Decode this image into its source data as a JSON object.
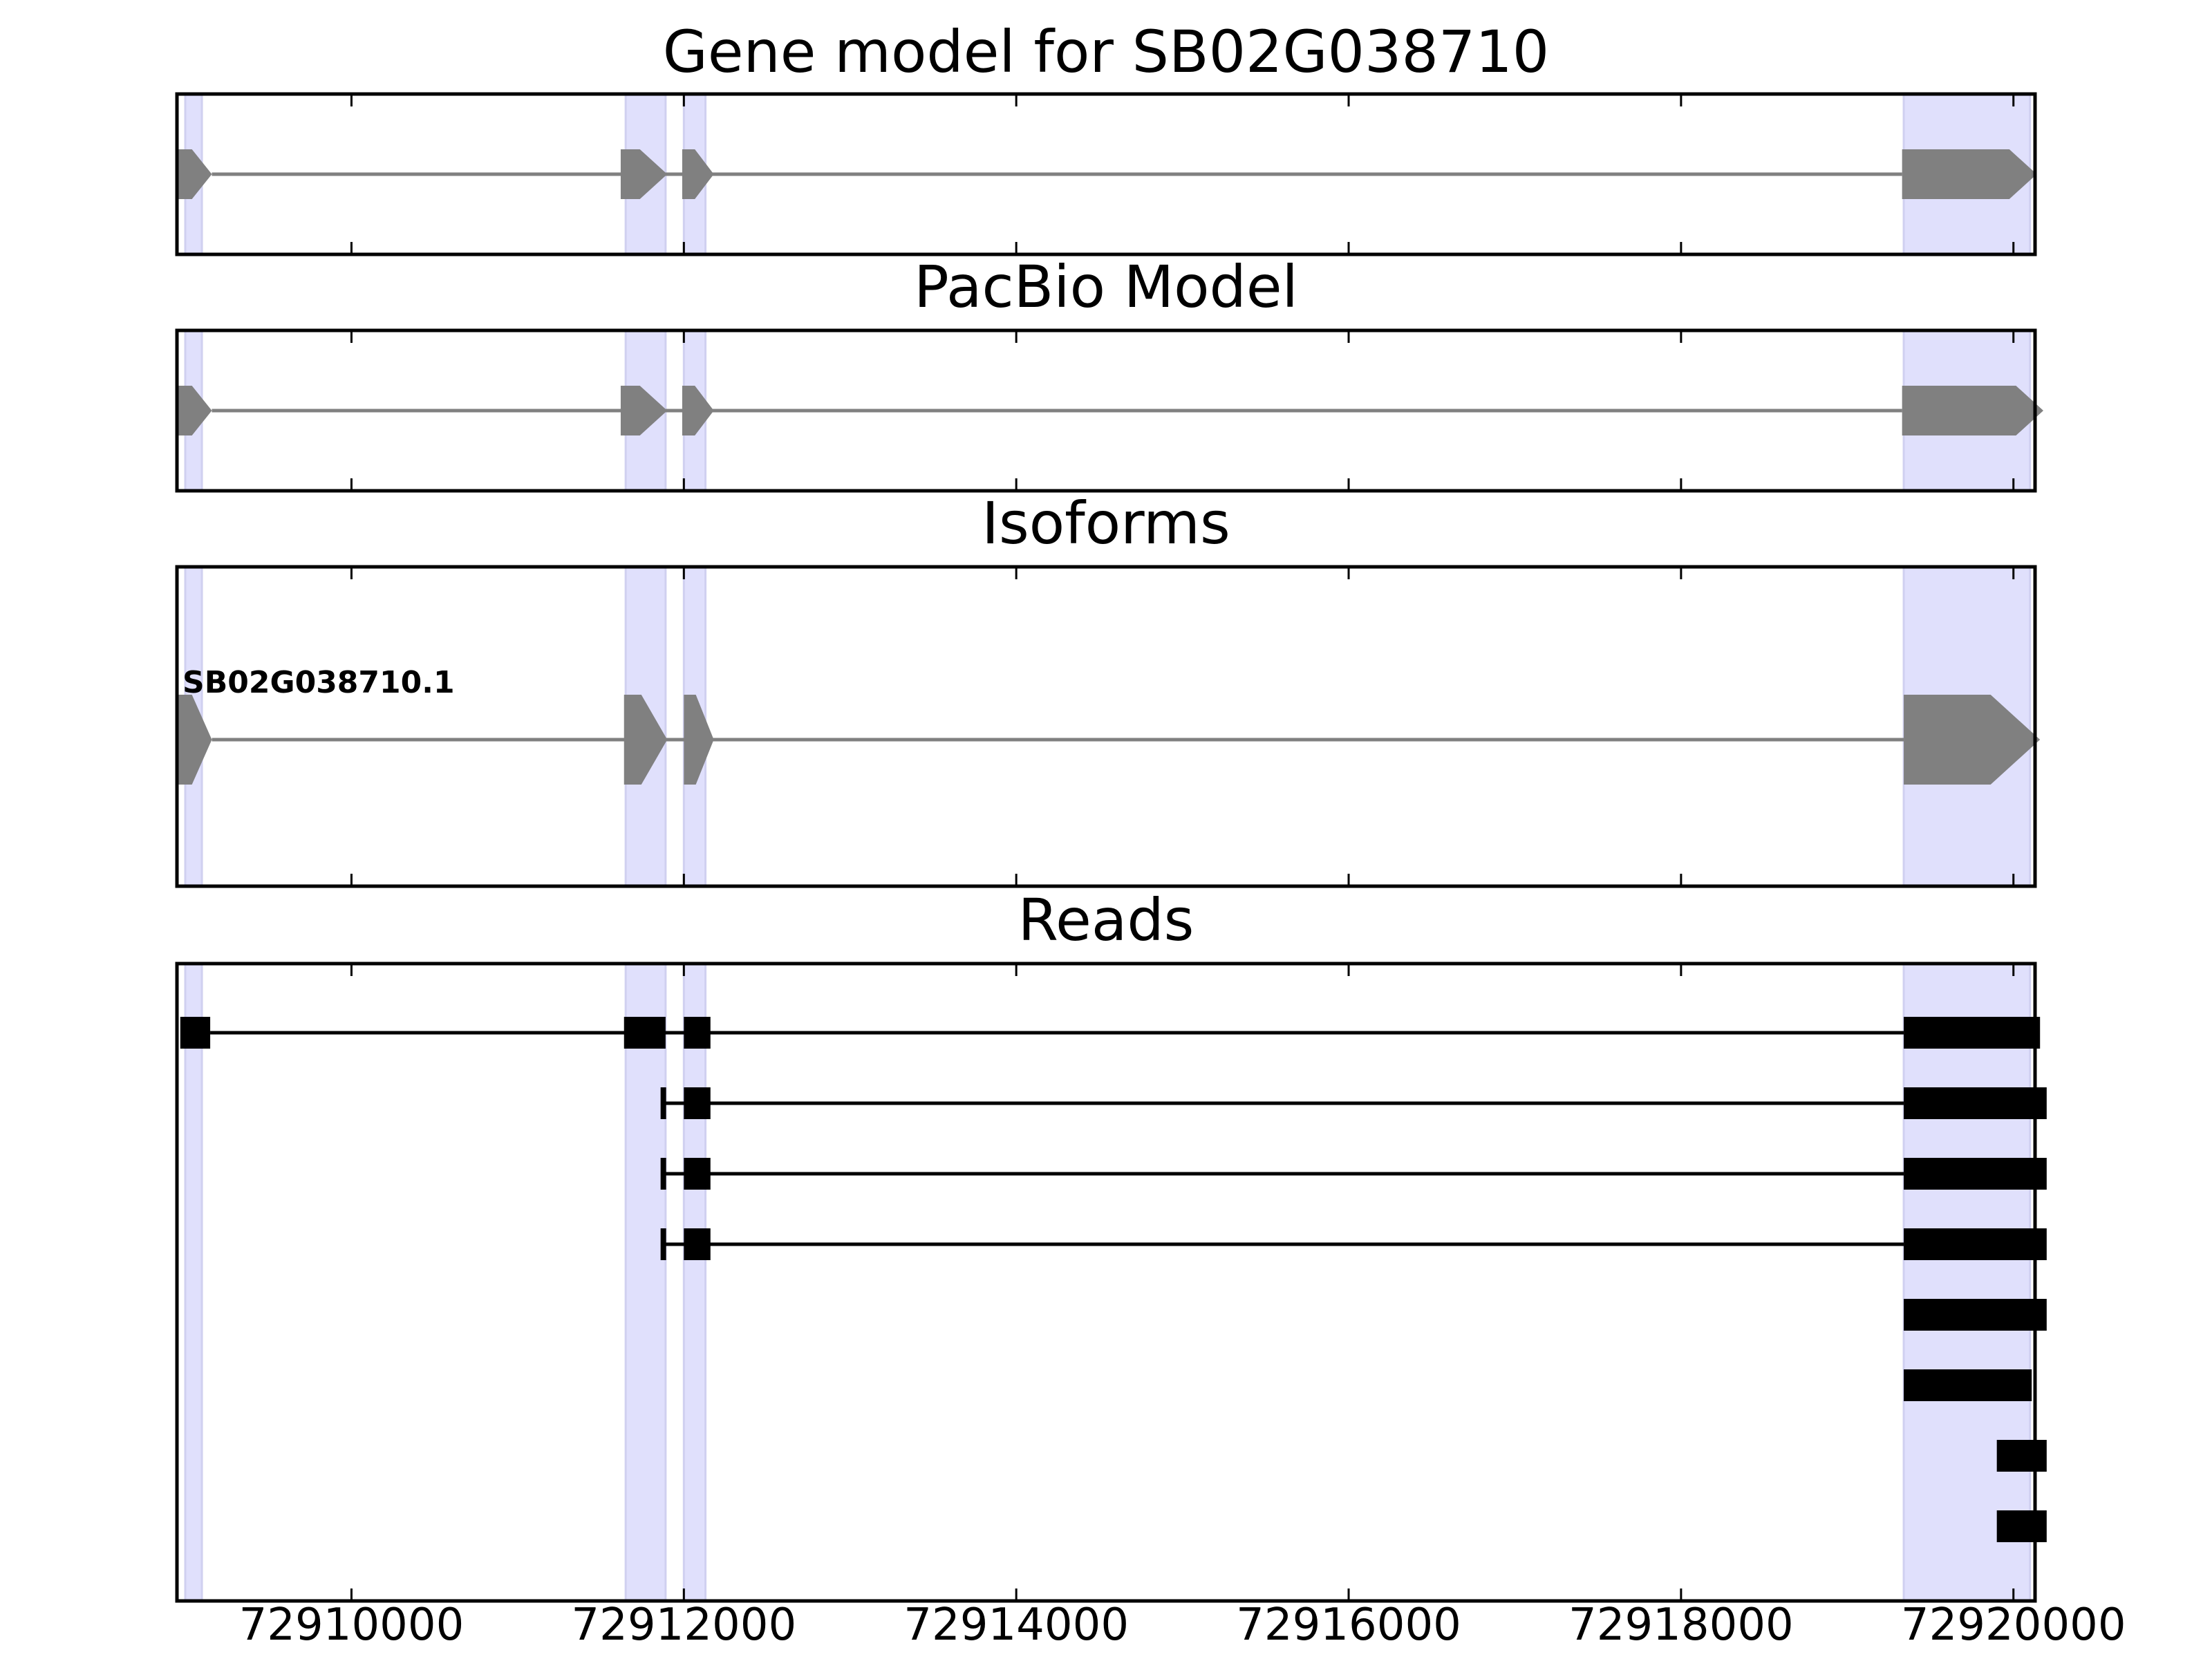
{
  "chart_data": {
    "type": "gene-track",
    "x_range": [
      72908950,
      72920130
    ],
    "x_ticks": [
      72910000,
      72912000,
      72914000,
      72916000,
      72918000,
      72920000
    ],
    "x_tick_labels": [
      "72910000",
      "72912000",
      "72914000",
      "72916000",
      "72918000",
      "72920000"
    ],
    "exon_regions": [
      [
        72909000,
        72909100
      ],
      [
        72911650,
        72911890
      ],
      [
        72912000,
        72912130
      ],
      [
        72919340,
        72920100
      ]
    ],
    "colors": {
      "exon_highlight": "#e0e0fc",
      "model": "#808080",
      "reads": "#000000",
      "axes": "#000000"
    },
    "panels": [
      {
        "title": "Gene model for SB02G038710",
        "kind": "model",
        "tracks": [
          {
            "label": "",
            "exons": [
              [
                72908960,
                72909160
              ],
              [
                72911620,
                72911900
              ],
              [
                72911990,
                72912180
              ],
              [
                72919330,
                72920140
              ]
            ]
          }
        ]
      },
      {
        "title": "PacBio Model",
        "kind": "model",
        "tracks": [
          {
            "label": "",
            "exons": [
              [
                72908960,
                72909160
              ],
              [
                72911620,
                72911900
              ],
              [
                72911990,
                72912180
              ],
              [
                72919330,
                72920180
              ]
            ]
          }
        ]
      },
      {
        "title": "Isoforms",
        "kind": "model",
        "tracks": [
          {
            "label": "SB02G038710.1",
            "exons": [
              [
                72908960,
                72909160
              ],
              [
                72911640,
                72911900
              ],
              [
                72912000,
                72912180
              ],
              [
                72919340,
                72920160
              ]
            ]
          }
        ]
      },
      {
        "title": "Reads",
        "kind": "reads",
        "tracks": [
          {
            "label": "",
            "exons": [
              [
                72908970,
                72909150
              ],
              [
                72911640,
                72911890
              ],
              [
                72912000,
                72912160
              ],
              [
                72919340,
                72920160
              ]
            ]
          },
          {
            "label": "",
            "exons": [
              [
                72911860,
                72911890
              ],
              [
                72912000,
                72912160
              ],
              [
                72919340,
                72920200
              ]
            ]
          },
          {
            "label": "",
            "exons": [
              [
                72911860,
                72911890
              ],
              [
                72912000,
                72912160
              ],
              [
                72919340,
                72920200
              ]
            ]
          },
          {
            "label": "",
            "exons": [
              [
                72911860,
                72911890
              ],
              [
                72912000,
                72912160
              ],
              [
                72919340,
                72920200
              ]
            ]
          },
          {
            "label": "",
            "exons": [
              [
                72919340,
                72920200
              ]
            ]
          },
          {
            "label": "",
            "exons": [
              [
                72919340,
                72920110
              ]
            ]
          },
          {
            "label": "",
            "exons": [
              [
                72919900,
                72920200
              ]
            ]
          },
          {
            "label": "",
            "exons": [
              [
                72919900,
                72920200
              ]
            ]
          }
        ]
      }
    ]
  }
}
